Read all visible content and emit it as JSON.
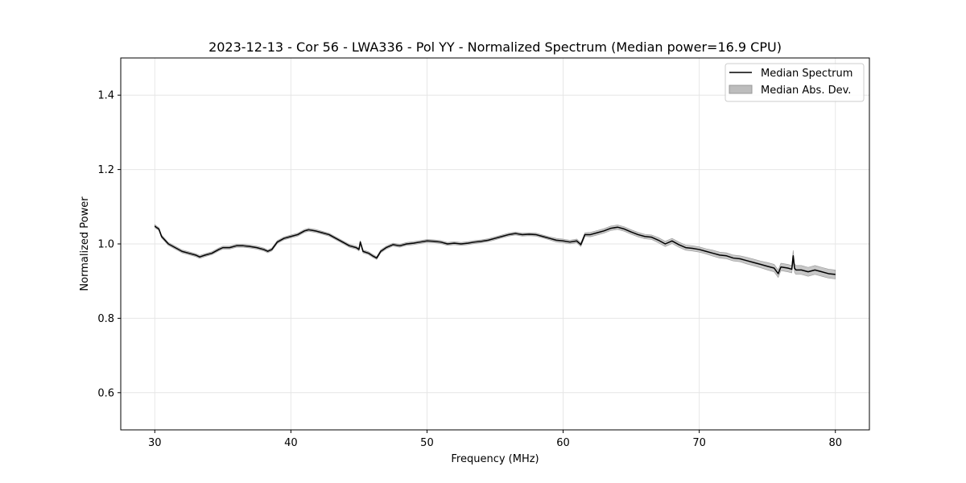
{
  "chart_data": {
    "type": "line",
    "title": "2023-12-13 - Cor 56 - LWA336 - Pol YY - Normalized Spectrum (Median power=16.9 CPU)",
    "xlabel": "Frequency (MHz)",
    "ylabel": "Normalized Power",
    "xlim": [
      27.5,
      82.5
    ],
    "ylim": [
      0.5,
      1.5
    ],
    "xticks": [
      30,
      40,
      50,
      60,
      70,
      80
    ],
    "xtick_labels": [
      "30",
      "40",
      "50",
      "60",
      "70",
      "80"
    ],
    "yticks": [
      0.6,
      0.8,
      1.0,
      1.2,
      1.4
    ],
    "ytick_labels": [
      "0.6",
      "0.8",
      "1.0",
      "1.2",
      "1.4"
    ],
    "grid": true,
    "legend_position": "top-right",
    "legend": [
      "Median Spectrum",
      "Median Abs. Dev."
    ],
    "series": [
      {
        "name": "Median Spectrum",
        "color": "#000000",
        "x": [
          30.0,
          30.1,
          30.3,
          30.5,
          31.0,
          31.5,
          32.0,
          32.5,
          33.0,
          33.3,
          33.7,
          34.2,
          34.7,
          35.0,
          35.5,
          36.0,
          36.5,
          37.0,
          37.5,
          38.0,
          38.3,
          38.6,
          39.0,
          39.5,
          40.0,
          40.5,
          41.0,
          41.3,
          41.8,
          42.3,
          42.8,
          43.3,
          43.8,
          44.3,
          44.8,
          45.0,
          45.1,
          45.3,
          45.7,
          46.0,
          46.3,
          46.6,
          47.0,
          47.5,
          48.0,
          48.5,
          49.0,
          49.5,
          50.0,
          50.5,
          51.0,
          51.5,
          52.0,
          52.5,
          53.0,
          53.5,
          54.0,
          54.5,
          55.0,
          55.5,
          56.0,
          56.5,
          57.0,
          57.5,
          58.0,
          58.5,
          59.0,
          59.5,
          60.0,
          60.5,
          61.0,
          61.3,
          61.6,
          62.0,
          62.5,
          63.0,
          63.5,
          64.0,
          64.5,
          65.0,
          65.5,
          66.0,
          66.5,
          67.0,
          67.5,
          68.0,
          68.5,
          69.0,
          69.5,
          70.0,
          70.5,
          71.0,
          71.5,
          72.0,
          72.5,
          73.0,
          73.5,
          74.0,
          74.5,
          75.0,
          75.5,
          75.8,
          76.0,
          76.5,
          76.8,
          76.9,
          77.0,
          77.1,
          77.5,
          78.0,
          78.5,
          79.0,
          79.5,
          80.0
        ],
        "values": [
          1.048,
          1.045,
          1.04,
          1.02,
          1.0,
          0.99,
          0.98,
          0.975,
          0.97,
          0.965,
          0.97,
          0.975,
          0.985,
          0.99,
          0.99,
          0.995,
          0.995,
          0.993,
          0.99,
          0.985,
          0.98,
          0.985,
          1.005,
          1.015,
          1.02,
          1.025,
          1.035,
          1.038,
          1.035,
          1.03,
          1.025,
          1.015,
          1.005,
          0.995,
          0.99,
          0.985,
          1.005,
          0.98,
          0.975,
          0.968,
          0.962,
          0.98,
          0.99,
          0.998,
          0.995,
          1.0,
          1.002,
          1.005,
          1.008,
          1.007,
          1.005,
          1.0,
          1.002,
          1.0,
          1.002,
          1.005,
          1.007,
          1.01,
          1.015,
          1.02,
          1.025,
          1.028,
          1.025,
          1.026,
          1.025,
          1.02,
          1.015,
          1.01,
          1.008,
          1.005,
          1.008,
          0.998,
          1.025,
          1.025,
          1.03,
          1.035,
          1.042,
          1.045,
          1.04,
          1.032,
          1.025,
          1.02,
          1.018,
          1.01,
          1.0,
          1.008,
          0.998,
          0.99,
          0.988,
          0.985,
          0.98,
          0.975,
          0.97,
          0.968,
          0.962,
          0.96,
          0.955,
          0.95,
          0.945,
          0.94,
          0.935,
          0.92,
          0.938,
          0.935,
          0.932,
          0.968,
          0.935,
          0.93,
          0.93,
          0.925,
          0.93,
          0.925,
          0.92,
          0.918
        ],
        "mad_values": [
          0.004,
          0.004,
          0.004,
          0.004,
          0.004,
          0.004,
          0.004,
          0.004,
          0.004,
          0.004,
          0.004,
          0.004,
          0.004,
          0.004,
          0.004,
          0.004,
          0.004,
          0.004,
          0.004,
          0.004,
          0.004,
          0.004,
          0.004,
          0.004,
          0.004,
          0.004,
          0.004,
          0.004,
          0.004,
          0.004,
          0.004,
          0.004,
          0.004,
          0.004,
          0.004,
          0.004,
          0.004,
          0.004,
          0.004,
          0.004,
          0.004,
          0.004,
          0.004,
          0.004,
          0.004,
          0.004,
          0.004,
          0.004,
          0.004,
          0.004,
          0.004,
          0.004,
          0.004,
          0.004,
          0.004,
          0.004,
          0.004,
          0.004,
          0.004,
          0.004,
          0.004,
          0.004,
          0.004,
          0.004,
          0.004,
          0.004,
          0.004,
          0.005,
          0.005,
          0.005,
          0.005,
          0.005,
          0.005,
          0.006,
          0.006,
          0.006,
          0.006,
          0.006,
          0.006,
          0.006,
          0.006,
          0.006,
          0.006,
          0.007,
          0.007,
          0.007,
          0.007,
          0.007,
          0.007,
          0.007,
          0.007,
          0.008,
          0.008,
          0.008,
          0.008,
          0.008,
          0.009,
          0.009,
          0.009,
          0.01,
          0.01,
          0.01,
          0.01,
          0.01,
          0.01,
          0.015,
          0.012,
          0.012,
          0.012,
          0.012,
          0.012,
          0.012,
          0.012,
          0.012
        ]
      }
    ]
  },
  "colors": {
    "line": "#000000",
    "band_fill": "#bdbdbd",
    "band_edge": "#999999",
    "grid": "#e6e6e6",
    "axes": "#000000"
  }
}
